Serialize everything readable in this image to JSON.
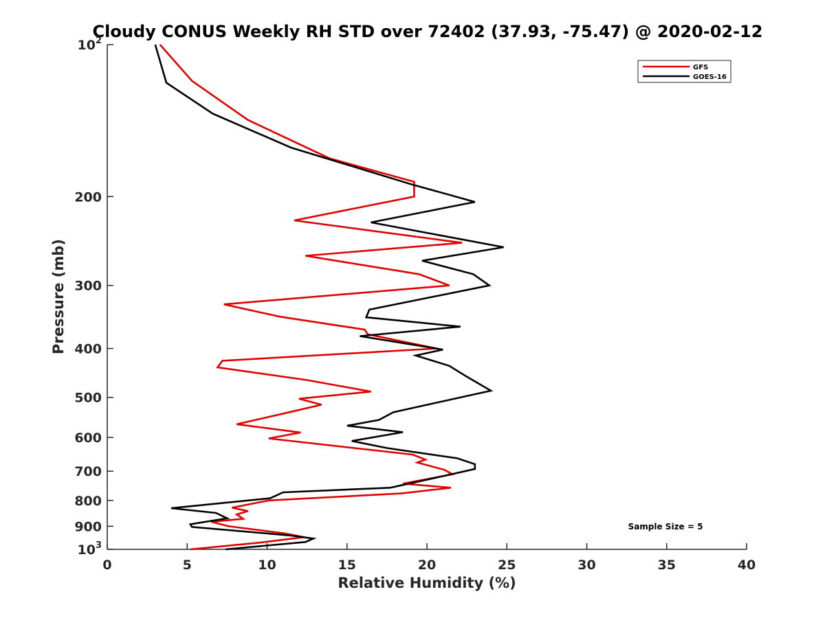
{
  "chart_data": {
    "type": "line",
    "title": "Cloudy CONUS Weekly RH STD over 72402 (37.93, -75.47) @ 2020-02-12",
    "xlabel": "Relative Humidity (%)",
    "ylabel": "Pressure (mb)",
    "xlim": [
      0,
      40
    ],
    "ylim": [
      100,
      1000
    ],
    "y_scale": "log",
    "y_reversed": true,
    "grid": false,
    "legend_position": "top-right",
    "x_ticks": [
      "0",
      "5",
      "10",
      "15",
      "20",
      "25",
      "30",
      "35",
      "40"
    ],
    "y_ticks": [
      {
        "value": 100,
        "base": "10",
        "exp": "2"
      },
      {
        "value": 200,
        "label": "200"
      },
      {
        "value": 300,
        "label": "300"
      },
      {
        "value": 400,
        "label": "400"
      },
      {
        "value": 500,
        "label": "500"
      },
      {
        "value": 600,
        "label": "600"
      },
      {
        "value": 700,
        "label": "700"
      },
      {
        "value": 800,
        "label": "800"
      },
      {
        "value": 900,
        "label": "900"
      },
      {
        "value": 1000,
        "base": "10",
        "exp": "3"
      }
    ],
    "series": [
      {
        "name": "GFS",
        "color": "#e00000",
        "points": [
          [
            3.3,
            100
          ],
          [
            5.3,
            118
          ],
          [
            8.8,
            141
          ],
          [
            13.9,
            168
          ],
          [
            19.2,
            187
          ],
          [
            19.2,
            200
          ],
          [
            11.7,
            223
          ],
          [
            22.2,
            247
          ],
          [
            12.4,
            262
          ],
          [
            19.5,
            285
          ],
          [
            21.4,
            300
          ],
          [
            7.3,
            327
          ],
          [
            10.8,
            346
          ],
          [
            16.1,
            367
          ],
          [
            16.3,
            375
          ],
          [
            20.6,
            400
          ],
          [
            7.2,
            423
          ],
          [
            6.9,
            436
          ],
          [
            12.5,
            462
          ],
          [
            16.5,
            487
          ],
          [
            12.0,
            503
          ],
          [
            13.4,
            517
          ],
          [
            11.5,
            534
          ],
          [
            8.1,
            565
          ],
          [
            12.1,
            587
          ],
          [
            10.1,
            603
          ],
          [
            19.1,
            649
          ],
          [
            19.9,
            664
          ],
          [
            19.4,
            673
          ],
          [
            21.1,
            696
          ],
          [
            21.6,
            710
          ],
          [
            18.5,
            741
          ],
          [
            21.5,
            755
          ],
          [
            18.4,
            775
          ],
          [
            10.1,
            800
          ],
          [
            7.8,
            827
          ],
          [
            8.8,
            840
          ],
          [
            8.1,
            853
          ],
          [
            8.5,
            870
          ],
          [
            6.5,
            882
          ],
          [
            7.6,
            900
          ],
          [
            11.1,
            930
          ],
          [
            12.3,
            946
          ],
          [
            9.5,
            970
          ],
          [
            5.2,
            1000
          ]
        ]
      },
      {
        "name": "GOES-16",
        "color": "#000000",
        "points": [
          [
            3.0,
            100
          ],
          [
            3.7,
            119
          ],
          [
            6.6,
            137
          ],
          [
            11.5,
            160
          ],
          [
            19.0,
            189
          ],
          [
            23.0,
            205
          ],
          [
            16.5,
            225
          ],
          [
            24.8,
            252
          ],
          [
            19.7,
            268
          ],
          [
            22.9,
            285
          ],
          [
            23.9,
            300
          ],
          [
            16.4,
            335
          ],
          [
            16.2,
            347
          ],
          [
            22.1,
            362
          ],
          [
            15.8,
            378
          ],
          [
            21.0,
            402
          ],
          [
            19.3,
            413
          ],
          [
            21.4,
            433
          ],
          [
            22.4,
            453
          ],
          [
            24.0,
            485
          ],
          [
            17.9,
            535
          ],
          [
            17.0,
            554
          ],
          [
            15.0,
            569
          ],
          [
            18.5,
            586
          ],
          [
            15.3,
            610
          ],
          [
            17.5,
            630
          ],
          [
            21.9,
            660
          ],
          [
            23.0,
            678
          ],
          [
            23.0,
            693
          ],
          [
            21.1,
            715
          ],
          [
            17.7,
            755
          ],
          [
            11.0,
            771
          ],
          [
            10.2,
            792
          ],
          [
            4.0,
            829
          ],
          [
            6.8,
            847
          ],
          [
            7.5,
            868
          ],
          [
            5.2,
            892
          ],
          [
            5.3,
            903
          ],
          [
            11.5,
            939
          ],
          [
            12.9,
            952
          ],
          [
            12.4,
            967
          ],
          [
            7.4,
            1000
          ]
        ]
      }
    ],
    "annotation": "Sample Size = 5"
  }
}
